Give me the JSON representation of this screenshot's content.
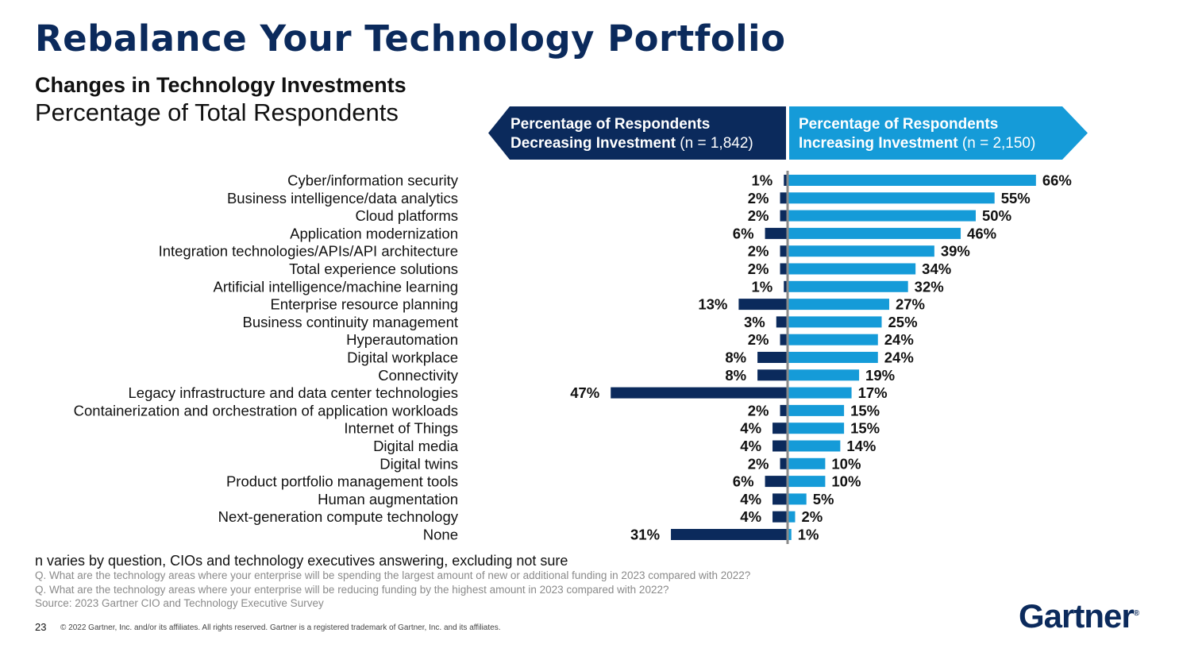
{
  "title": "Rebalance Your Technology Portfolio",
  "subtitle": "Changes in Technology Investments",
  "subtitle2": "Percentage of Total Respondents",
  "colors": {
    "dark": "#0b2a5c",
    "light": "#159bd8",
    "axis": "#8a8a8a"
  },
  "chart_data": {
    "type": "bar",
    "orientation": "horizontal-diverging",
    "categories": [
      "Cyber/information security",
      "Business intelligence/data analytics",
      "Cloud platforms",
      "Application modernization",
      "Integration technologies/APIs/API architecture",
      "Total experience solutions",
      "Artificial intelligence/machine learning",
      "Enterprise resource planning",
      "Business continuity management",
      "Hyperautomation",
      "Digital workplace",
      "Connectivity",
      "Legacy infrastructure and data center technologies",
      "Containerization and orchestration of application workloads",
      "Internet of Things",
      "Digital media",
      "Digital twins",
      "Product portfolio management tools",
      "Human augmentation",
      "Next-generation compute technology",
      "None"
    ],
    "series": [
      {
        "name": "Decreasing Investment",
        "header_line1": "Percentage of Respondents",
        "header_line2_bold": "Decreasing Investment",
        "header_n": "(n = 1,842)",
        "values": [
          1,
          2,
          2,
          6,
          2,
          2,
          1,
          13,
          3,
          2,
          8,
          8,
          47,
          2,
          4,
          4,
          2,
          6,
          4,
          4,
          31
        ]
      },
      {
        "name": "Increasing Investment",
        "header_line1": "Percentage of Respondents",
        "header_line2_bold": "Increasing Investment",
        "header_n": "(n = 2,150)",
        "values": [
          66,
          55,
          50,
          46,
          39,
          34,
          32,
          27,
          25,
          24,
          24,
          19,
          17,
          15,
          15,
          14,
          10,
          10,
          5,
          2,
          1
        ]
      }
    ],
    "unit": "%"
  },
  "footer": {
    "note": "n varies by question, CIOs and technology executives answering, excluding not sure",
    "q1": "Q. What are the technology areas where your enterprise will be spending the largest amount of new or additional funding in 2023 compared with 2022?",
    "q2": "Q. What are the technology areas where your enterprise will be reducing funding by the highest amount in 2023 compared with 2022?",
    "source": "Source: 2023 Gartner CIO and Technology Executive Survey",
    "page_number": "23",
    "copyright": "© 2022 Gartner, Inc. and/or its affiliates. All rights reserved. Gartner is a registered trademark of Gartner, Inc. and its affiliates.",
    "logo_text": "Gartner",
    "logo_mark": "®"
  }
}
